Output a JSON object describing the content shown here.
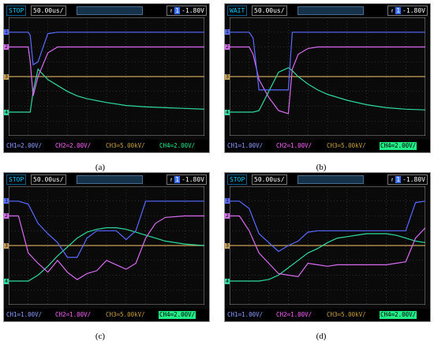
{
  "panels": [
    {
      "caption": "(a)",
      "status": "STOP",
      "timebase": "50.00us/",
      "trigger_level": "-1.80V",
      "channels": [
        {
          "label": "CH1",
          "value": "2.00V/",
          "highlight": false
        },
        {
          "label": "CH2",
          "value": "2.00V/",
          "highlight": false
        },
        {
          "label": "CH3",
          "value": "5.00kV/",
          "highlight": false
        },
        {
          "label": "CH4",
          "value": "2.00V/",
          "highlight": false
        }
      ]
    },
    {
      "caption": "(b)",
      "status": "WAIT",
      "timebase": "50.00us/",
      "trigger_level": "-1.80V",
      "channels": [
        {
          "label": "CH1",
          "value": "1.00V/",
          "highlight": false
        },
        {
          "label": "CH2",
          "value": "1.00V/",
          "highlight": false
        },
        {
          "label": "CH3",
          "value": "5.00kV/",
          "highlight": false
        },
        {
          "label": "CH4",
          "value": "2.00V/",
          "highlight": true
        }
      ]
    },
    {
      "caption": "(c)",
      "status": "STOP",
      "timebase": "50.00us/",
      "trigger_level": "-1.80V",
      "channels": [
        {
          "label": "CH1",
          "value": "1.00V/",
          "highlight": false
        },
        {
          "label": "CH2",
          "value": "1.00V/",
          "highlight": false
        },
        {
          "label": "CH3",
          "value": "5.00kV/",
          "highlight": false
        },
        {
          "label": "CH4",
          "value": "2.00V/",
          "highlight": true
        }
      ]
    },
    {
      "caption": "(d)",
      "status": "STOP",
      "timebase": "50.00us/",
      "trigger_level": "-1.80V",
      "channels": [
        {
          "label": "CH1",
          "value": "1.00V/",
          "highlight": false
        },
        {
          "label": "CH2",
          "value": "1.00V/",
          "highlight": false
        },
        {
          "label": "CH3",
          "value": "5.00kV/",
          "highlight": false
        },
        {
          "label": "CH4",
          "value": "2.00V/",
          "highlight": true
        }
      ]
    }
  ],
  "colors": {
    "ch1": "#5a6bff",
    "ch2": "#d86cf0",
    "ch3": "#c9a25a",
    "ch4": "#2fd9a0"
  },
  "chart_data": [
    {
      "type": "line",
      "x": [
        0,
        0.5,
        1.0,
        1.1,
        1.25,
        1.5,
        2.0,
        2.5,
        3.0,
        3.5,
        4.0,
        5.0,
        6.0,
        7.0,
        8.0,
        9.0,
        10.0
      ],
      "xlim": [
        0,
        10
      ],
      "ylim": [
        -4,
        4
      ],
      "series": [
        {
          "name": "CH1",
          "color": "#5a6bff",
          "values": [
            3.0,
            3.0,
            3.0,
            2.8,
            0.8,
            1.0,
            2.9,
            3.0,
            3.0,
            3.0,
            3.0,
            3.0,
            3.0,
            3.0,
            3.0,
            3.0,
            3.0
          ]
        },
        {
          "name": "CH2",
          "color": "#d86cf0",
          "values": [
            2.0,
            2.0,
            2.0,
            1.0,
            -1.3,
            0.0,
            1.6,
            2.0,
            2.0,
            2.0,
            2.0,
            2.0,
            2.0,
            2.0,
            2.0,
            2.0,
            2.0
          ]
        },
        {
          "name": "CH3",
          "color": "#c9a25a",
          "values": [
            0.0,
            0.0,
            0.0,
            0.0,
            0.0,
            0.0,
            0.0,
            0.0,
            0.0,
            0.0,
            0.0,
            0.0,
            0.0,
            0.0,
            0.0,
            0.0,
            0.0
          ]
        },
        {
          "name": "CH4",
          "color": "#2fd9a0",
          "values": [
            -2.4,
            -2.4,
            -2.4,
            -2.4,
            -1.0,
            0.5,
            -0.2,
            -0.6,
            -1.0,
            -1.3,
            -1.5,
            -1.75,
            -1.95,
            -2.05,
            -2.1,
            -2.15,
            -2.2
          ]
        }
      ]
    },
    {
      "type": "line",
      "x": [
        0,
        0.5,
        1.0,
        1.2,
        1.5,
        2.0,
        2.5,
        3.0,
        3.2,
        3.5,
        4.0,
        4.5,
        5.0,
        6.0,
        7.0,
        8.0,
        9.0,
        10.0
      ],
      "xlim": [
        0,
        10
      ],
      "ylim": [
        -4,
        4
      ],
      "series": [
        {
          "name": "CH1",
          "color": "#5a6bff",
          "values": [
            3.0,
            3.0,
            3.0,
            2.6,
            -0.9,
            -0.9,
            -0.9,
            -0.9,
            3.0,
            3.0,
            3.0,
            3.0,
            3.0,
            3.0,
            3.0,
            3.0,
            3.0,
            3.0
          ]
        },
        {
          "name": "CH2",
          "color": "#d86cf0",
          "values": [
            2.0,
            2.0,
            2.0,
            1.5,
            -0.2,
            -1.4,
            -2.3,
            -2.5,
            0.5,
            1.5,
            1.9,
            2.0,
            2.0,
            2.0,
            2.0,
            2.0,
            2.0,
            2.0
          ]
        },
        {
          "name": "CH3",
          "color": "#c9a25a",
          "values": [
            0.0,
            0.0,
            0.0,
            0.0,
            0.0,
            0.0,
            0.0,
            0.0,
            0.0,
            0.0,
            0.0,
            0.0,
            0.0,
            0.0,
            0.0,
            0.0,
            0.0,
            0.0
          ]
        },
        {
          "name": "CH4",
          "color": "#2fd9a0",
          "values": [
            -2.4,
            -2.4,
            -2.4,
            -2.4,
            -2.3,
            -1.0,
            0.3,
            0.6,
            0.4,
            0.0,
            -0.5,
            -0.9,
            -1.2,
            -1.6,
            -1.9,
            -2.1,
            -2.2,
            -2.25
          ]
        }
      ]
    },
    {
      "type": "line",
      "x": [
        0,
        0.5,
        1.0,
        1.5,
        2.0,
        2.5,
        3.0,
        3.5,
        4.0,
        4.5,
        5.0,
        5.5,
        6.0,
        6.5,
        7.0,
        7.5,
        8.0,
        9.0,
        10.0
      ],
      "xlim": [
        0,
        10
      ],
      "ylim": [
        -4,
        4
      ],
      "series": [
        {
          "name": "CH1",
          "color": "#5a6bff",
          "values": [
            3.0,
            3.0,
            2.8,
            1.5,
            0.8,
            0.2,
            -0.8,
            -0.8,
            0.5,
            1.0,
            1.0,
            1.0,
            0.4,
            1.0,
            3.0,
            3.0,
            3.0,
            3.0,
            3.0
          ]
        },
        {
          "name": "CH2",
          "color": "#d86cf0",
          "values": [
            2.0,
            2.0,
            -0.5,
            -1.2,
            -1.8,
            -1.0,
            -1.8,
            -2.3,
            -1.9,
            -1.7,
            -1.0,
            -1.3,
            -1.6,
            -1.2,
            0.5,
            1.5,
            1.9,
            2.0,
            2.0
          ]
        },
        {
          "name": "CH3",
          "color": "#c9a25a",
          "values": [
            0.0,
            0.0,
            0.0,
            0.0,
            0.0,
            0.0,
            0.0,
            0.0,
            0.0,
            0.0,
            0.0,
            0.0,
            0.0,
            0.0,
            0.0,
            0.0,
            0.0,
            0.0,
            0.0
          ]
        },
        {
          "name": "CH4",
          "color": "#2fd9a0",
          "values": [
            -2.4,
            -2.4,
            -2.4,
            -2.0,
            -1.4,
            -0.7,
            -0.1,
            0.5,
            0.9,
            1.1,
            1.2,
            1.2,
            1.1,
            0.9,
            0.7,
            0.5,
            0.3,
            0.1,
            0.0
          ]
        }
      ]
    },
    {
      "type": "line",
      "x": [
        0,
        0.5,
        1.0,
        1.5,
        2.0,
        2.5,
        3.0,
        3.5,
        4.0,
        4.5,
        5.0,
        5.5,
        6.0,
        6.5,
        7.0,
        7.5,
        8.0,
        8.5,
        9.0,
        9.5,
        10.0
      ],
      "xlim": [
        0,
        10
      ],
      "ylim": [
        -4,
        4
      ],
      "series": [
        {
          "name": "CH1",
          "color": "#5a6bff",
          "values": [
            3.0,
            3.0,
            2.5,
            0.8,
            0.2,
            -0.4,
            0.0,
            0.3,
            0.9,
            1.0,
            1.0,
            1.0,
            1.0,
            1.0,
            1.0,
            1.0,
            1.0,
            1.0,
            1.0,
            2.9,
            3.0
          ]
        },
        {
          "name": "CH2",
          "color": "#d86cf0",
          "values": [
            2.0,
            2.0,
            1.0,
            -0.5,
            -1.2,
            -1.9,
            -2.0,
            -2.1,
            -1.2,
            -1.3,
            -1.4,
            -1.3,
            -1.3,
            -1.3,
            -1.3,
            -1.3,
            -1.3,
            -1.2,
            -1.1,
            0.5,
            1.2
          ]
        },
        {
          "name": "CH3",
          "color": "#c9a25a",
          "values": [
            0.0,
            0.0,
            0.0,
            0.0,
            0.0,
            0.0,
            0.0,
            0.0,
            0.0,
            0.0,
            0.0,
            0.0,
            0.0,
            0.0,
            0.0,
            0.0,
            0.0,
            0.0,
            0.0,
            0.0,
            0.0
          ]
        },
        {
          "name": "CH4",
          "color": "#2fd9a0",
          "values": [
            -2.4,
            -2.4,
            -2.4,
            -2.4,
            -2.3,
            -2.0,
            -1.5,
            -1.0,
            -0.5,
            -0.2,
            0.2,
            0.5,
            0.6,
            0.7,
            0.8,
            0.8,
            0.8,
            0.7,
            0.5,
            0.3,
            0.2
          ]
        }
      ]
    }
  ]
}
